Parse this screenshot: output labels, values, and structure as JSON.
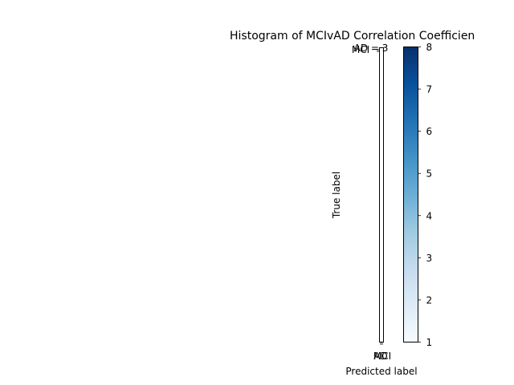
{
  "chart_data": {
    "type": "heatmap",
    "title": "Histogram of MCIvAD Correlation Coefficien",
    "xlabel": "Predicted label",
    "ylabel": "True label",
    "x_tick_labels": [
      "MCI",
      "AD"
    ],
    "y_tick_labels": [
      "MCI",
      "AD"
    ],
    "cell_annotations": [
      "AD = 3",
      "MCI"
    ],
    "colormap": "Blues",
    "colorbar": {
      "min": 1,
      "max": 8,
      "ticks": [
        1,
        2,
        3,
        4,
        5,
        6,
        7,
        8
      ],
      "tick_labels": [
        "1",
        "2",
        "3",
        "4",
        "5",
        "6",
        "7",
        "8"
      ]
    },
    "grid": false
  }
}
